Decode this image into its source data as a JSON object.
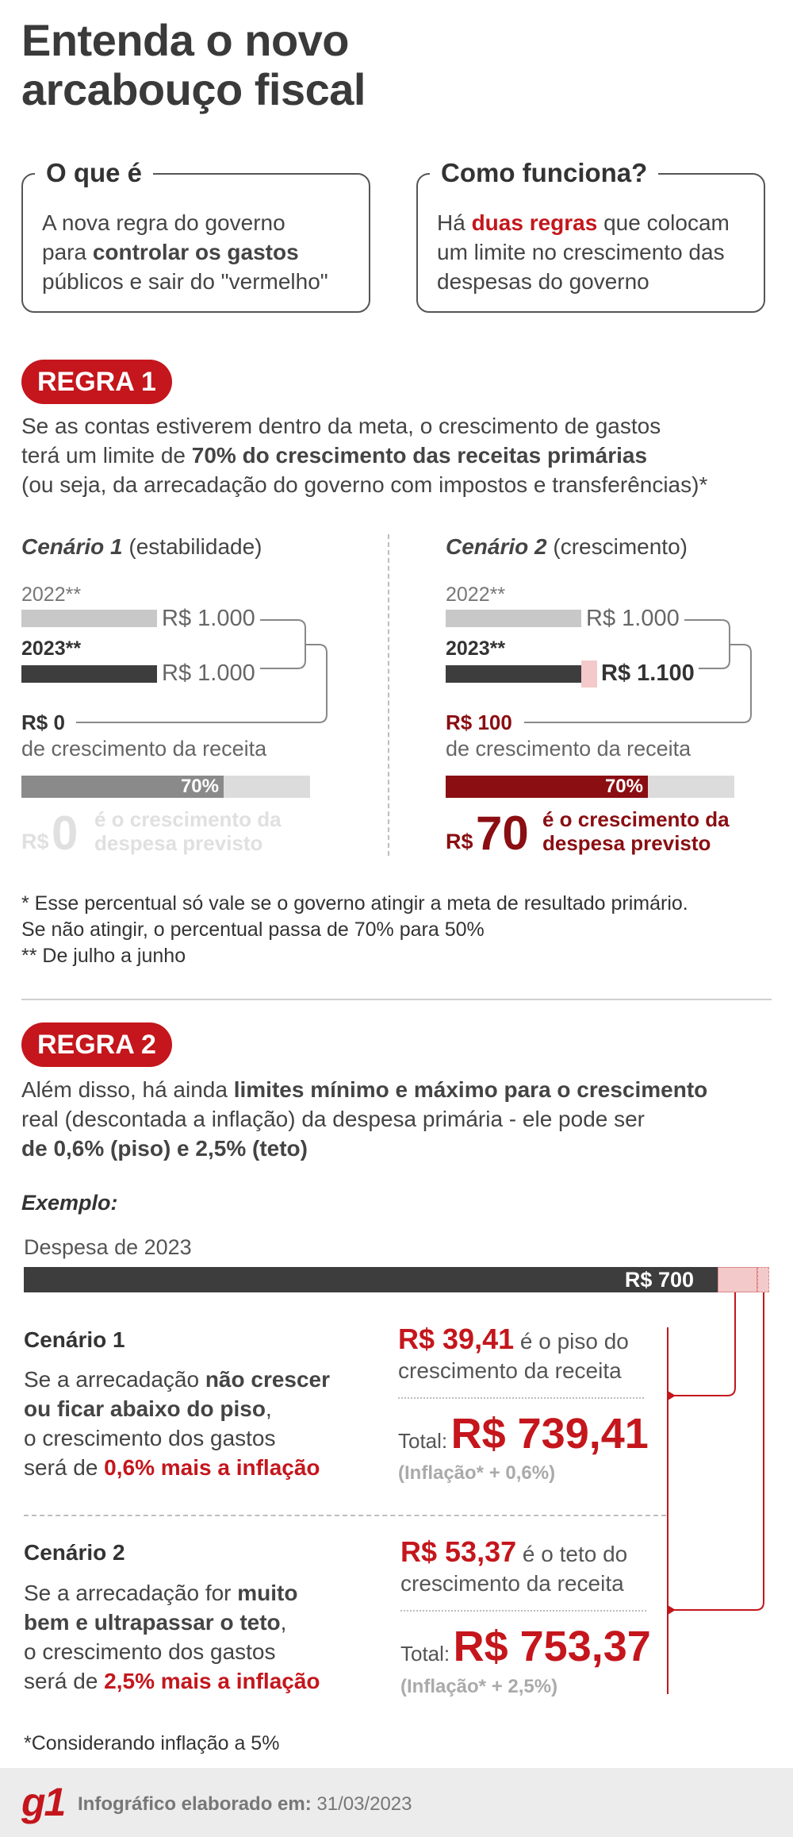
{
  "title_line1": "Entenda o novo",
  "title_line2": "arcabouço fiscal",
  "box1": {
    "title": "O que é",
    "l1": "A nova regra do governo",
    "l2a": "para ",
    "l2b": "controlar os gastos",
    "l3": "públicos e sair do \"vermelho\""
  },
  "box2": {
    "title": "Como funciona?",
    "l1a": "Há ",
    "l1b": "duas regras",
    "l1c": " que colocam",
    "l2": "um limite no crescimento das",
    "l3": "despesas do governo"
  },
  "regra1": {
    "badge": "REGRA 1",
    "l1": "Se as contas estiverem dentro da meta, o crescimento de gastos",
    "l2a": "terá um limite de ",
    "l2b": "70% do crescimento das receitas primárias",
    "l3": "(ou seja, da arrecadação do governo com impostos e transferências)*",
    "s1": {
      "title_b": "Cenário 1",
      "title_r": " (estabilidade)",
      "y2022": "2022**",
      "y2023": "2023**",
      "v2022": "R$ 1.000",
      "v2023": "R$ 1.000",
      "growth": "R$ 0",
      "growth_label": "de crescimento da receita",
      "pct": "70%",
      "pct_fill": 0.7,
      "result_cur": "R$",
      "result_num": "0",
      "result_t1": "é o crescimento da",
      "result_t2": "despesa previsto"
    },
    "s2": {
      "title_b": "Cenário 2",
      "title_r": " (crescimento)",
      "y2022": "2022**",
      "y2023": "2023**",
      "v2022": "R$ 1.000",
      "v2023": "R$ 1.100",
      "growth": "R$ 100",
      "growth_label": "de crescimento da receita",
      "pct": "70%",
      "pct_fill": 0.7,
      "result_cur": "R$",
      "result_num": "70",
      "result_t1": "é o crescimento da",
      "result_t2": "despesa previsto"
    },
    "note1": "* Esse percentual só vale se o governo atingir a meta de resultado primário.",
    "note2": "Se não atingir, o percentual passa de 70% para 50%",
    "note3": "** De julho a junho"
  },
  "regra2": {
    "badge": "REGRA 2",
    "l1a": "Além disso, há ainda ",
    "l1b": "limites mínimo e máximo para o crescimento",
    "l2": "real (descontada a inflação) da despesa primária - ele pode ser",
    "l3": "de 0,6% (piso) e 2,5% (teto)",
    "example": "Exemplo:",
    "expense_label": "Despesa de 2023",
    "expense_value": "R$ 700",
    "c1": {
      "title": "Cenário 1",
      "t1a": "Se a arrecadação ",
      "t1b": "não crescer",
      "t2": "ou ficar abaixo do piso",
      "t2c": ",",
      "t3": "o crescimento dos gastos",
      "t4a": "será de ",
      "t4b": "0,6% mais a inflação",
      "rv": "R$ 39,41",
      "rv_t1": " é o piso do",
      "rv_t2": "crescimento da receita",
      "total_l": "Total:",
      "total_v": "R$ 739,41",
      "infl": "(Inflação* + 0,6%)"
    },
    "c2": {
      "title": "Cenário 2",
      "t1a": "Se a arrecadação for ",
      "t1b": "muito",
      "t2": "bem e ultrapassar o teto",
      "t2c": ",",
      "t3": "o crescimento dos gastos",
      "t4a": "será de ",
      "t4b": "2,5% mais a inflação",
      "rv": "R$ 53,37",
      "rv_t1": " é o teto do",
      "rv_t2": "crescimento da receita",
      "total_l": "Total:",
      "total_v": "R$ 753,37",
      "infl": "(Inflação* + 2,5%)"
    },
    "note": "*Considerando inflação a 5%"
  },
  "footer": {
    "logo": "g1",
    "label": "Infográfico elaborado em:",
    "date": " 31/03/2023"
  },
  "colors": {
    "accent": "#c4161c",
    "dark_bar": "#3d3d3d",
    "light_bar": "#c8c8c8",
    "dark_red": "#8a0e12"
  }
}
